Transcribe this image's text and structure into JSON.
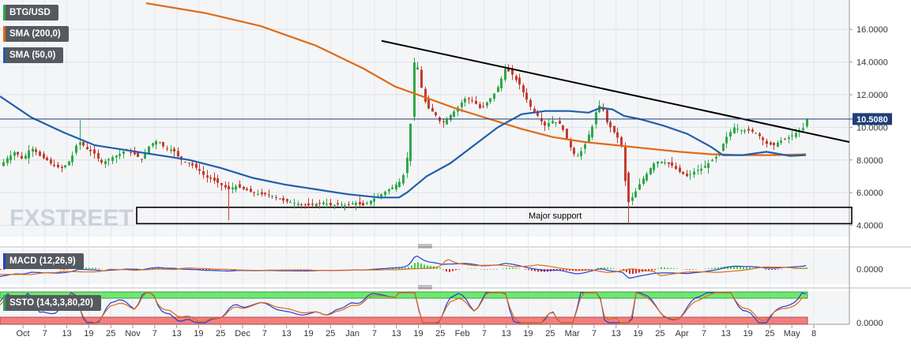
{
  "chart_data": {
    "type": "candlestick",
    "symbol": "BTG/USD",
    "current_price": "10.5080",
    "colors": {
      "up": "#2ea84a",
      "down": "#c43c2f",
      "sma200": "#e06a16",
      "sma50": "#1f5fae",
      "price_line": "#1f3f7a"
    },
    "y_ticks": [
      "16.0000",
      "14.0000",
      "12.0000",
      "10.0000",
      "8.0000",
      "6.0000",
      "4.0000"
    ],
    "ylim": [
      3.3,
      17.8
    ],
    "x_ticks": [
      "Oct",
      "7",
      "13",
      "19",
      "25",
      "Nov",
      "7",
      "13",
      "19",
      "25",
      "Dec",
      "7",
      "13",
      "19",
      "25",
      "Jan",
      "7",
      "13",
      "19",
      "25",
      "Feb",
      "7",
      "13",
      "19",
      "25",
      "Mar",
      "7",
      "13",
      "19",
      "25",
      "Apr",
      "7",
      "13",
      "19",
      "25",
      "May",
      "8"
    ],
    "indicators": [
      {
        "name": "SMA (200,0)",
        "color": "#e06a16"
      },
      {
        "name": "SMA (50,0)",
        "color": "#1f5fae"
      }
    ],
    "annotations": {
      "support_label": "Major support",
      "support_range": [
        4.1,
        5.1
      ],
      "trendline": [
        [
          0,
          15.3
        ],
        [
          1,
          9.1
        ]
      ]
    },
    "price_points": [
      [
        0,
        7.6
      ],
      [
        10,
        8.1
      ],
      [
        20,
        8.5
      ],
      [
        30,
        8.0
      ],
      [
        40,
        8.8
      ],
      [
        50,
        8.3
      ],
      [
        60,
        8.0
      ],
      [
        70,
        7.6
      ],
      [
        80,
        7.5
      ],
      [
        90,
        8.0
      ],
      [
        100,
        9.2
      ],
      [
        110,
        8.7
      ],
      [
        120,
        8.4
      ],
      [
        130,
        7.8
      ],
      [
        140,
        8.1
      ],
      [
        150,
        8.3
      ],
      [
        160,
        8.6
      ],
      [
        170,
        8.4
      ],
      [
        180,
        8.0
      ],
      [
        190,
        8.9
      ],
      [
        200,
        9.2
      ],
      [
        210,
        8.7
      ],
      [
        220,
        8.6
      ],
      [
        230,
        8.0
      ],
      [
        240,
        7.8
      ],
      [
        250,
        7.5
      ],
      [
        260,
        7.0
      ],
      [
        270,
        6.8
      ],
      [
        280,
        6.5
      ],
      [
        290,
        6.2
      ],
      [
        300,
        6.4
      ],
      [
        310,
        6.2
      ],
      [
        320,
        6.0
      ],
      [
        330,
        5.9
      ],
      [
        340,
        5.9
      ],
      [
        350,
        5.7
      ],
      [
        360,
        5.5
      ],
      [
        370,
        5.4
      ],
      [
        380,
        5.3
      ],
      [
        390,
        5.2
      ],
      [
        400,
        5.3
      ],
      [
        410,
        5.4
      ],
      [
        420,
        5.2
      ],
      [
        430,
        5.3
      ],
      [
        440,
        5.2
      ],
      [
        450,
        5.4
      ],
      [
        460,
        5.2
      ],
      [
        470,
        5.5
      ],
      [
        480,
        5.8
      ],
      [
        490,
        6.1
      ],
      [
        500,
        6.4
      ],
      [
        510,
        6.8
      ],
      [
        518,
        8.5
      ],
      [
        522,
        11.5
      ],
      [
        526,
        14.5
      ],
      [
        530,
        13.5
      ],
      [
        536,
        12.0
      ],
      [
        542,
        11.2
      ],
      [
        550,
        10.9
      ],
      [
        560,
        10.2
      ],
      [
        570,
        10.7
      ],
      [
        580,
        11.2
      ],
      [
        590,
        11.8
      ],
      [
        600,
        11.6
      ],
      [
        610,
        11.1
      ],
      [
        620,
        11.7
      ],
      [
        630,
        12.3
      ],
      [
        640,
        13.6
      ],
      [
        650,
        13.2
      ],
      [
        660,
        12.5
      ],
      [
        670,
        11.4
      ],
      [
        680,
        10.8
      ],
      [
        690,
        10.1
      ],
      [
        700,
        10.4
      ],
      [
        710,
        10.2
      ],
      [
        720,
        9.1
      ],
      [
        730,
        8.1
      ],
      [
        740,
        8.8
      ],
      [
        750,
        10.0
      ],
      [
        758,
        11.4
      ],
      [
        764,
        11.1
      ],
      [
        770,
        10.2
      ],
      [
        780,
        9.6
      ],
      [
        790,
        8.6
      ],
      [
        794,
        5.3
      ],
      [
        800,
        5.6
      ],
      [
        810,
        6.5
      ],
      [
        820,
        7.2
      ],
      [
        830,
        7.9
      ],
      [
        840,
        7.9
      ],
      [
        850,
        7.7
      ],
      [
        860,
        7.3
      ],
      [
        870,
        7.0
      ],
      [
        880,
        7.3
      ],
      [
        890,
        7.5
      ],
      [
        900,
        7.9
      ],
      [
        910,
        8.3
      ],
      [
        920,
        9.4
      ],
      [
        930,
        10.0
      ],
      [
        940,
        9.8
      ],
      [
        950,
        9.8
      ],
      [
        960,
        9.6
      ],
      [
        970,
        9.0
      ],
      [
        980,
        8.9
      ],
      [
        990,
        9.2
      ],
      [
        1000,
        9.4
      ],
      [
        1010,
        9.7
      ],
      [
        1017,
        9.9
      ],
      [
        1021,
        10.5
      ]
    ],
    "sma200_points": [
      [
        185,
        17.6
      ],
      [
        260,
        17.0
      ],
      [
        330,
        16.2
      ],
      [
        400,
        15.0
      ],
      [
        460,
        13.6
      ],
      [
        500,
        12.5
      ],
      [
        540,
        11.8
      ],
      [
        580,
        11.1
      ],
      [
        620,
        10.5
      ],
      [
        660,
        9.9
      ],
      [
        700,
        9.4
      ],
      [
        740,
        9.1
      ],
      [
        780,
        8.9
      ],
      [
        820,
        8.7
      ],
      [
        860,
        8.5
      ],
      [
        900,
        8.35
      ],
      [
        940,
        8.3
      ],
      [
        980,
        8.3
      ],
      [
        1020,
        8.35
      ]
    ],
    "sma50_points": [
      [
        0,
        11.9
      ],
      [
        40,
        10.6
      ],
      [
        80,
        9.7
      ],
      [
        120,
        8.9
      ],
      [
        160,
        8.6
      ],
      [
        200,
        8.3
      ],
      [
        240,
        8.0
      ],
      [
        280,
        7.5
      ],
      [
        320,
        6.9
      ],
      [
        360,
        6.5
      ],
      [
        400,
        6.2
      ],
      [
        440,
        5.9
      ],
      [
        480,
        5.7
      ],
      [
        505,
        5.7
      ],
      [
        515,
        6.0
      ],
      [
        540,
        7.0
      ],
      [
        570,
        7.8
      ],
      [
        600,
        8.9
      ],
      [
        630,
        10.0
      ],
      [
        660,
        10.8
      ],
      [
        690,
        11.0
      ],
      [
        720,
        11.0
      ],
      [
        745,
        10.9
      ],
      [
        760,
        11.2
      ],
      [
        775,
        11.1
      ],
      [
        790,
        10.7
      ],
      [
        810,
        10.5
      ],
      [
        840,
        10.1
      ],
      [
        870,
        9.6
      ],
      [
        900,
        8.8
      ],
      [
        915,
        8.3
      ],
      [
        940,
        8.3
      ],
      [
        970,
        8.5
      ],
      [
        1000,
        8.25
      ],
      [
        1020,
        8.3
      ]
    ],
    "macd_panel": {
      "name": "MACD (12,26,9)",
      "y_tick": "0.0000"
    },
    "stoch_panel": {
      "name": "SSTO (14,3,3,80,20)",
      "y_tick": "0.0000"
    },
    "watermark": "FXSTREET"
  }
}
